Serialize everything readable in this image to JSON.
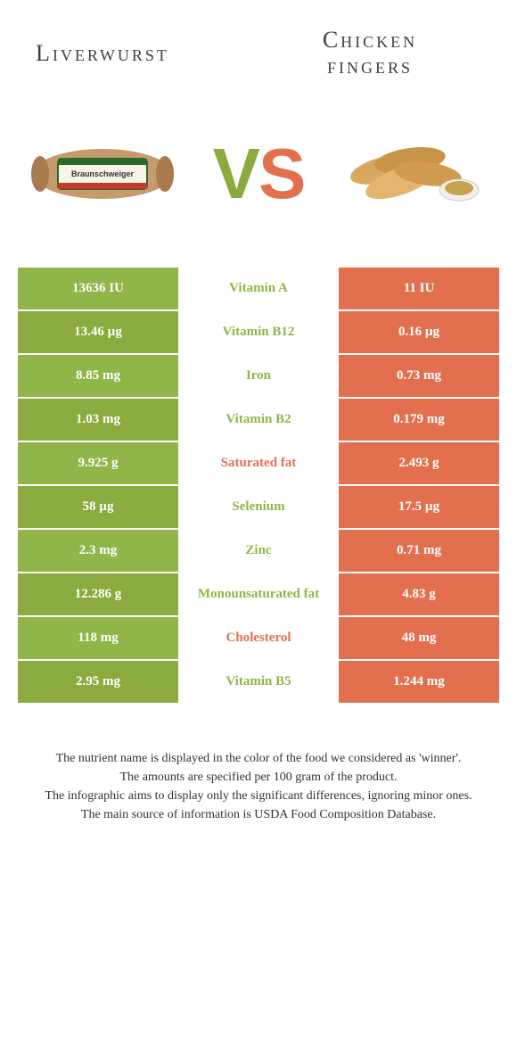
{
  "header": {
    "left": "Liverwurst",
    "right_line1": "Chicken",
    "right_line2": "fingers"
  },
  "vs": {
    "v": "V",
    "s": "S"
  },
  "colors": {
    "green": "#90b548",
    "green_alt": "#8aab3e",
    "orange": "#e2704f",
    "white": "#ffffff",
    "text": "#404040"
  },
  "rows": [
    {
      "left": "13636 IU",
      "mid": "Vitamin A",
      "right": "11 IU",
      "mid_color": "green"
    },
    {
      "left": "13.46 µg",
      "mid": "Vitamin B12",
      "right": "0.16 µg",
      "mid_color": "green"
    },
    {
      "left": "8.85 mg",
      "mid": "Iron",
      "right": "0.73 mg",
      "mid_color": "green"
    },
    {
      "left": "1.03 mg",
      "mid": "Vitamin B2",
      "right": "0.179 mg",
      "mid_color": "green"
    },
    {
      "left": "9.925 g",
      "mid": "Saturated fat",
      "right": "2.493 g",
      "mid_color": "orange"
    },
    {
      "left": "58 µg",
      "mid": "Selenium",
      "right": "17.5 µg",
      "mid_color": "green"
    },
    {
      "left": "2.3 mg",
      "mid": "Zinc",
      "right": "0.71 mg",
      "mid_color": "green"
    },
    {
      "left": "12.286 g",
      "mid": "Monounsaturated fat",
      "right": "4.83 g",
      "mid_color": "green"
    },
    {
      "left": "118 mg",
      "mid": "Cholesterol",
      "right": "48 mg",
      "mid_color": "orange"
    },
    {
      "left": "2.95 mg",
      "mid": "Vitamin B5",
      "right": "1.244 mg",
      "mid_color": "green"
    }
  ],
  "left_bg_pattern": [
    "green",
    "green_alt"
  ],
  "right_bg": "orange",
  "footer": {
    "l1": "The nutrient name is displayed in the color of the food we considered as 'winner'.",
    "l2": "The amounts are specified per 100 gram of the product.",
    "l3": "The infographic aims to display only the significant differences, ignoring minor ones.",
    "l4": "The main source of information is USDA Food Composition Database."
  }
}
